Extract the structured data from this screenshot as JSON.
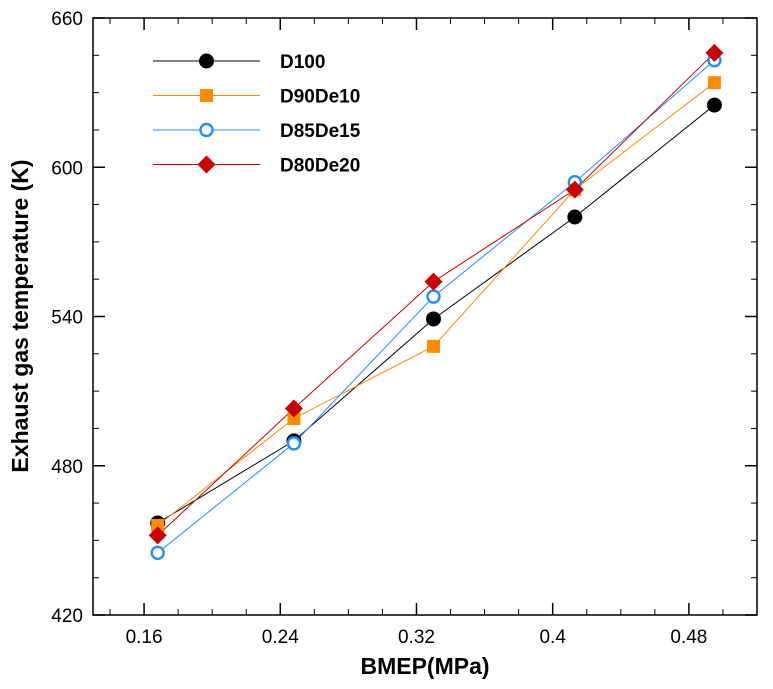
{
  "chart_data": {
    "type": "line",
    "title": "",
    "xlabel": "BMEP(MPa)",
    "ylabel": "Exhaust gas temperature (K)",
    "xlim": [
      0.13,
      0.52
    ],
    "ylim": [
      420,
      660
    ],
    "x_ticks": [
      0.16,
      0.24,
      0.32,
      0.4,
      0.48
    ],
    "x_tick_labels": [
      "0.16",
      "0.24",
      "0.32",
      "0.4",
      "0.48"
    ],
    "y_ticks": [
      420,
      480,
      540,
      600,
      660
    ],
    "y_tick_labels": [
      "420",
      "480",
      "540",
      "600",
      "660"
    ],
    "grid": false,
    "legend_position": "top-left",
    "x": [
      0.168,
      0.248,
      0.33,
      0.413,
      0.495
    ],
    "series": [
      {
        "name": "D100",
        "values": [
          457,
          490,
          539,
          580,
          625
        ],
        "color": "#000000",
        "marker": "filled-circle"
      },
      {
        "name": "D90De10",
        "values": [
          456,
          499,
          528,
          591,
          634
        ],
        "color": "#ff8c00",
        "marker": "filled-square"
      },
      {
        "name": "D85De15",
        "values": [
          445,
          489,
          548,
          594,
          643
        ],
        "color": "#1e90ff",
        "marker": "open-circle"
      },
      {
        "name": "D80De20",
        "values": [
          452,
          503,
          554,
          591,
          646
        ],
        "color": "#cc0000",
        "marker": "filled-diamond"
      }
    ]
  }
}
